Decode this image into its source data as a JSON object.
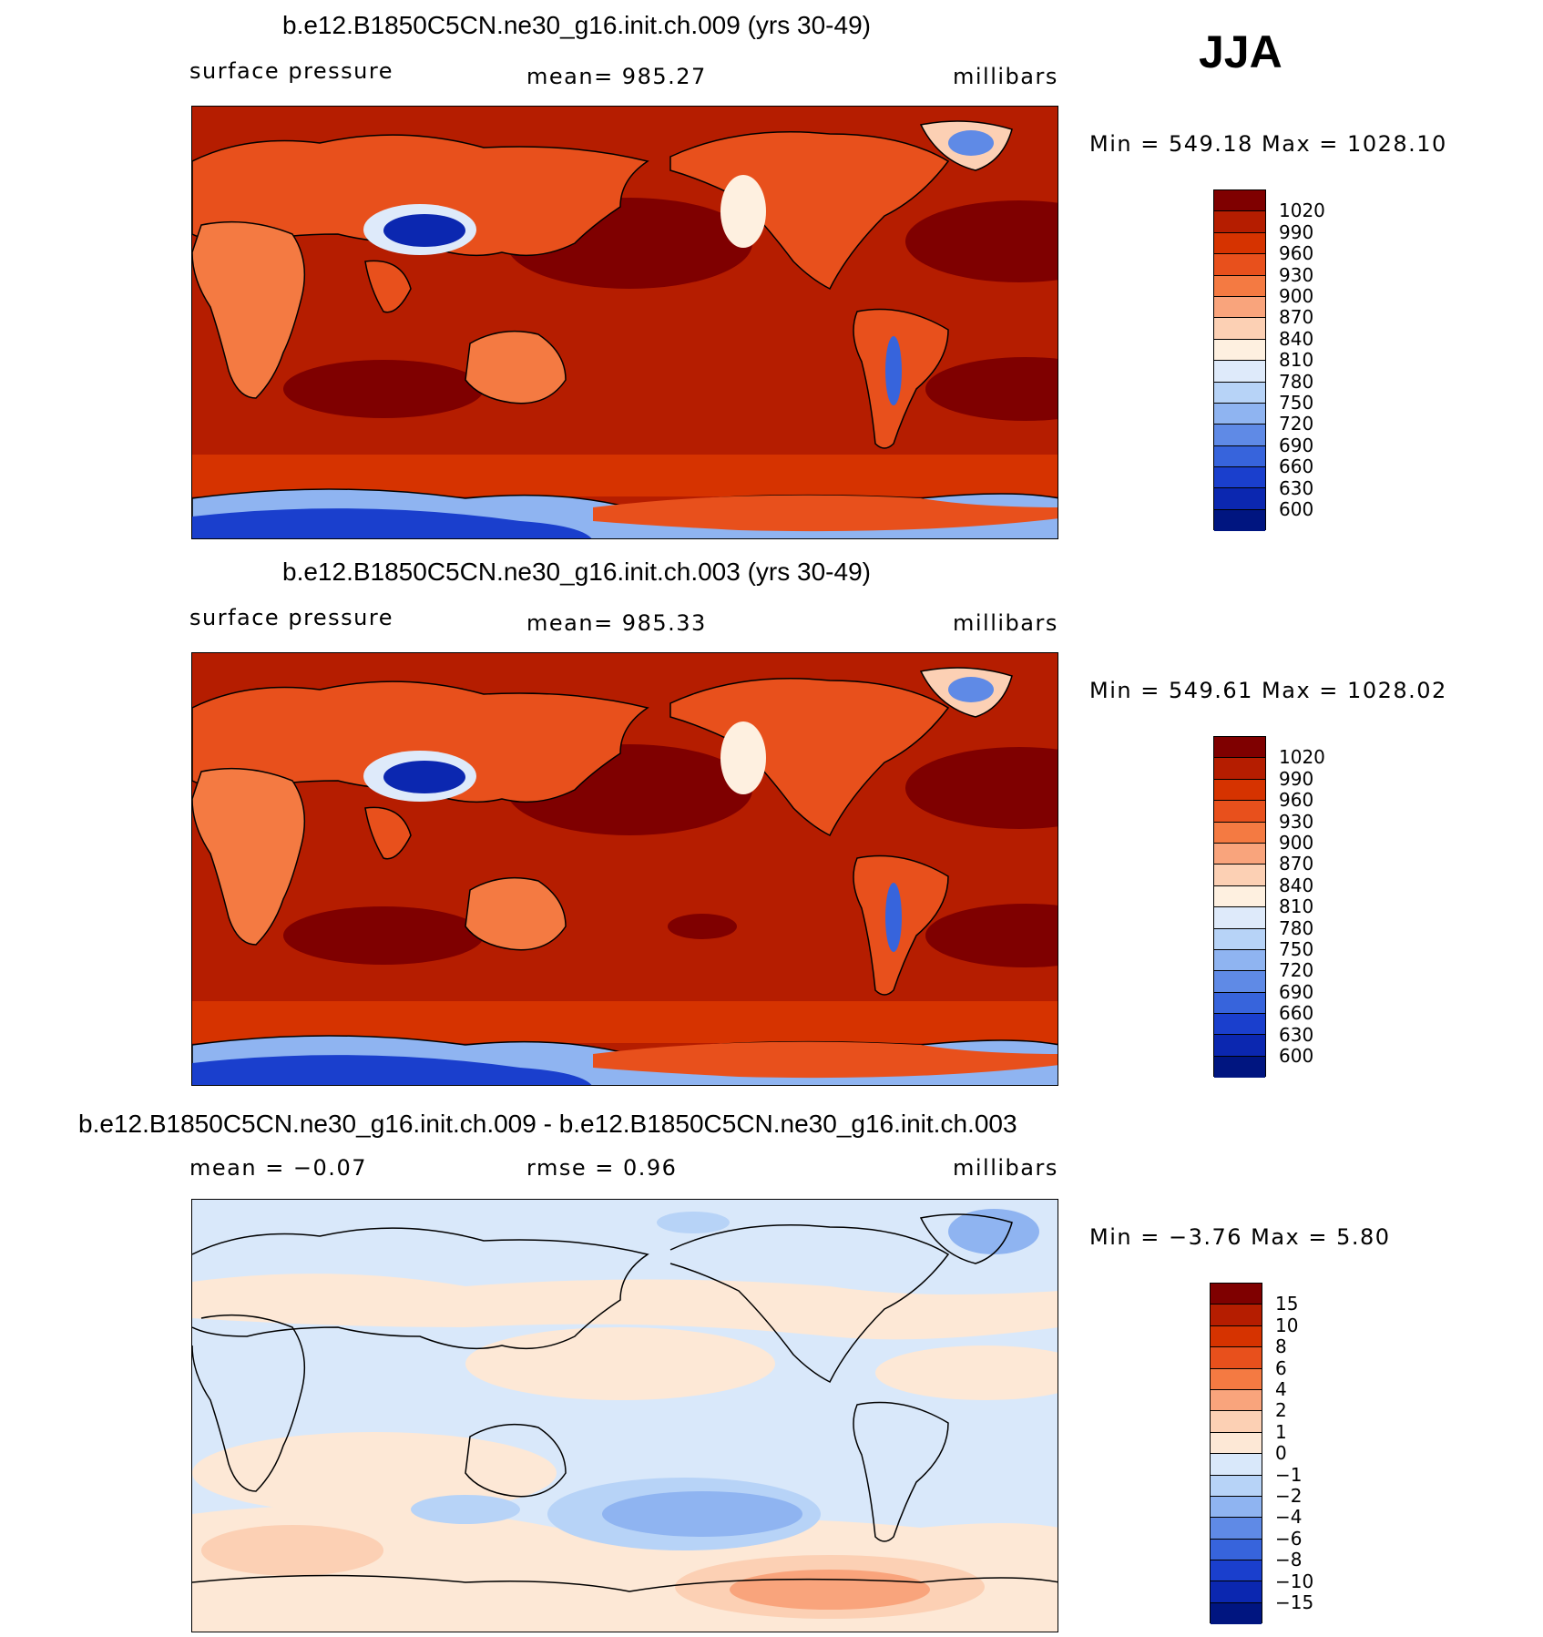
{
  "season": "JJA",
  "colors": {
    "sp_levels": [
      "#7f0000",
      "#b51d00",
      "#d63300",
      "#e8501c",
      "#f47a42",
      "#f9a47c",
      "#fcd0b4",
      "#fef0e0",
      "#deeafa",
      "#b7d3f7",
      "#8fb4f1",
      "#5f8ae6",
      "#3764dc",
      "#1a3fcd",
      "#0b27b0",
      "#001580"
    ],
    "diff_levels": [
      "#7f0000",
      "#b51d00",
      "#d63300",
      "#e8501c",
      "#f47a42",
      "#f9a47c",
      "#fcd0b4",
      "#fde8d6",
      "#d9e8fa",
      "#b7d3f7",
      "#8fb4f1",
      "#5f8ae6",
      "#3764dc",
      "#1a3fcd",
      "#0b27b0",
      "#001580"
    ]
  },
  "panels": [
    {
      "title": "b.e12.B1850C5CN.ne30_g16.init.ch.009 (yrs 30-49)",
      "left_label": "surface pressure",
      "center_label": "mean=  985.27",
      "right_label": "millibars",
      "minmax": "Min  =  549.18  Max  =  1028.10",
      "colorbar_labels": [
        "1020",
        "990",
        "960",
        "930",
        "900",
        "870",
        "840",
        "810",
        "780",
        "750",
        "720",
        "690",
        "660",
        "630",
        "600"
      ]
    },
    {
      "title": "b.e12.B1850C5CN.ne30_g16.init.ch.003 (yrs 30-49)",
      "left_label": "surface pressure",
      "center_label": "mean=  985.33",
      "right_label": "millibars",
      "minmax": "Min  =  549.61  Max  =  1028.02",
      "colorbar_labels": [
        "1020",
        "990",
        "960",
        "930",
        "900",
        "870",
        "840",
        "810",
        "780",
        "750",
        "720",
        "690",
        "660",
        "630",
        "600"
      ]
    },
    {
      "title": "b.e12.B1850C5CN.ne30_g16.init.ch.009 - b.e12.B1850C5CN.ne30_g16.init.ch.003",
      "left_label": "mean  =    −0.07",
      "center_label": "rmse  =     0.96",
      "right_label": "millibars",
      "minmax": "Min  =    −3.76  Max  =      5.80",
      "colorbar_labels": [
        "15",
        "10",
        "8",
        "6",
        "4",
        "2",
        "1",
        "0",
        "−1",
        "−2",
        "−4",
        "−6",
        "−8",
        "−10",
        "−15"
      ]
    }
  ]
}
